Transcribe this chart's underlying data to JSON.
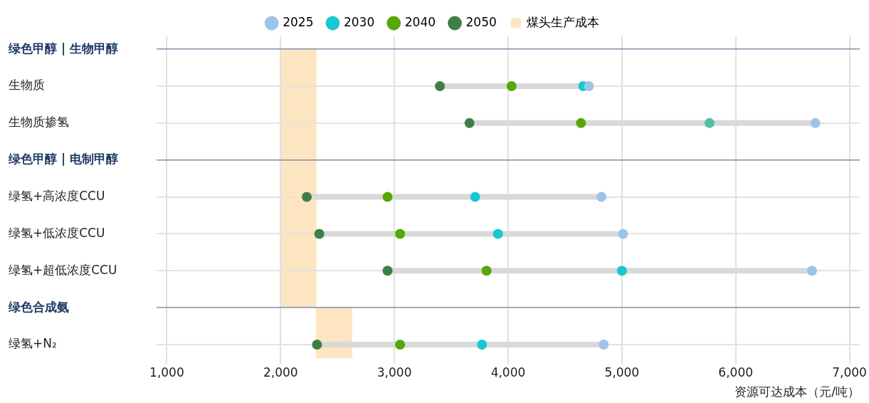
{
  "chart_data": {
    "type": "scatter",
    "orientation": "horizontal",
    "xlabel": "资源可达成本（元/吨）",
    "categories": [
      "绿色甲醇 | 生物甲醇",
      "生物质",
      "生物质掺氢",
      "绿色甲醇 | 电制甲醇",
      "绿氢+高浓度CCU",
      "绿氢+低浓度CCU",
      "绿氢+超低浓度CCU",
      "绿色合成氨",
      "绿氢+N₂"
    ],
    "series": [
      {
        "name": "2025",
        "color": "#9dc3e6",
        "values": [
          null,
          4710,
          6700,
          null,
          4820,
          5010,
          6670,
          null,
          4840
        ]
      },
      {
        "name": "2030",
        "color": "#17c8d3",
        "colors": [
          "#17c8d3",
          "#17c8d3",
          "#52c0a4",
          "#17c8d3",
          "#17c8d3",
          "#17c8d3",
          "#17c8d3",
          "#17c8d3",
          "#17c8d3"
        ],
        "values": [
          null,
          4660,
          5770,
          null,
          3710,
          3910,
          5000,
          null,
          3770
        ]
      },
      {
        "name": "2040",
        "color": "#57a70a",
        "values": [
          null,
          4030,
          4640,
          null,
          2940,
          3050,
          3810,
          null,
          3050
        ]
      },
      {
        "name": "2050",
        "color": "#3f7f45",
        "values": [
          null,
          3400,
          3660,
          null,
          2230,
          2340,
          2940,
          null,
          2320
        ]
      }
    ],
    "bands": [
      {
        "axis": "x",
        "from": 2000,
        "to": 2315,
        "label": "煤头生产成本",
        "color": "#fce5c0"
      },
      {
        "axis": "x",
        "from": 2310,
        "to": 2630,
        "color": "#fce5c0"
      }
    ],
    "xlim": [
      910,
      7090
    ],
    "xticks": [
      {
        "value": 1000,
        "label": "1,000"
      },
      {
        "value": 2000,
        "label": "2,000"
      },
      {
        "value": 3000,
        "label": "3,000"
      },
      {
        "value": 4000,
        "label": "4,000"
      },
      {
        "value": 5000,
        "label": "5,000"
      },
      {
        "value": 6000,
        "label": "6,000"
      },
      {
        "value": 7000,
        "label": "7,000"
      }
    ],
    "grid": true,
    "legend": "top",
    "marker": "circle"
  }
}
